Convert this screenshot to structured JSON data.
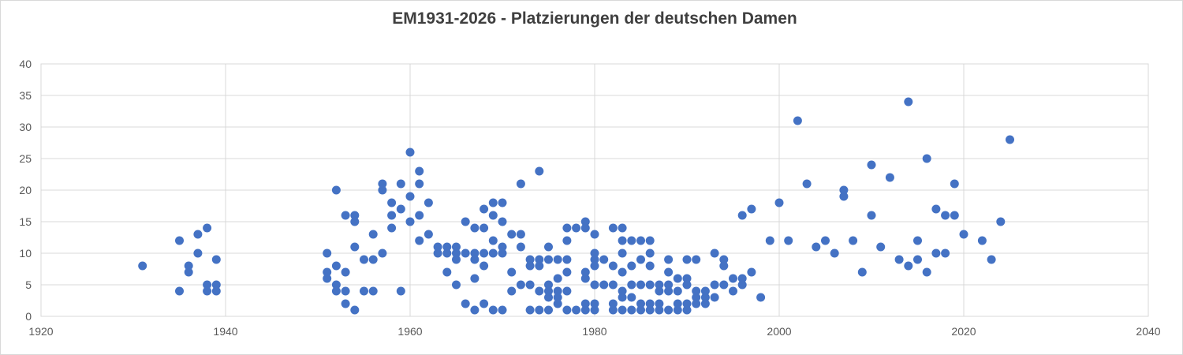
{
  "chart_data": {
    "type": "scatter",
    "title": "EM1931-2026 - Platzierungen der deutschen Damen",
    "xlabel": "",
    "ylabel": "",
    "xlim": [
      1920,
      2040
    ],
    "ylim": [
      0,
      40
    ],
    "x_ticks": [
      1920,
      1940,
      1960,
      1980,
      2000,
      2020,
      2040
    ],
    "y_ticks": [
      0,
      5,
      10,
      15,
      20,
      25,
      30,
      35,
      40
    ],
    "grid": true,
    "legend": "none",
    "marker": {
      "shape": "circle",
      "color": "#4472C4",
      "radius_px": 5.5
    },
    "points": [
      [
        1931,
        8
      ],
      [
        1935,
        12
      ],
      [
        1935,
        4
      ],
      [
        1936,
        8
      ],
      [
        1936,
        7
      ],
      [
        1937,
        13
      ],
      [
        1937,
        10
      ],
      [
        1938,
        14
      ],
      [
        1938,
        5
      ],
      [
        1938,
        4
      ],
      [
        1939,
        9
      ],
      [
        1939,
        5
      ],
      [
        1939,
        4
      ],
      [
        1951,
        10
      ],
      [
        1951,
        7
      ],
      [
        1951,
        6
      ],
      [
        1952,
        20
      ],
      [
        1952,
        8
      ],
      [
        1952,
        5
      ],
      [
        1952,
        4
      ],
      [
        1953,
        16
      ],
      [
        1953,
        7
      ],
      [
        1953,
        4
      ],
      [
        1953,
        2
      ],
      [
        1954,
        16
      ],
      [
        1954,
        15
      ],
      [
        1954,
        11
      ],
      [
        1954,
        1
      ],
      [
        1955,
        9
      ],
      [
        1955,
        4
      ],
      [
        1956,
        13
      ],
      [
        1956,
        9
      ],
      [
        1956,
        4
      ],
      [
        1957,
        21
      ],
      [
        1957,
        20
      ],
      [
        1957,
        10
      ],
      [
        1958,
        18
      ],
      [
        1958,
        16
      ],
      [
        1958,
        14
      ],
      [
        1959,
        21
      ],
      [
        1959,
        17
      ],
      [
        1959,
        4
      ],
      [
        1960,
        26
      ],
      [
        1960,
        19
      ],
      [
        1960,
        15
      ],
      [
        1961,
        23
      ],
      [
        1961,
        21
      ],
      [
        1961,
        16
      ],
      [
        1961,
        12
      ],
      [
        1962,
        18
      ],
      [
        1962,
        13
      ],
      [
        1963,
        11
      ],
      [
        1963,
        10
      ],
      [
        1964,
        11
      ],
      [
        1964,
        10
      ],
      [
        1964,
        7
      ],
      [
        1965,
        11
      ],
      [
        1965,
        10
      ],
      [
        1965,
        9
      ],
      [
        1965,
        5
      ],
      [
        1966,
        15
      ],
      [
        1966,
        10
      ],
      [
        1966,
        2
      ],
      [
        1967,
        14
      ],
      [
        1967,
        10
      ],
      [
        1967,
        9
      ],
      [
        1967,
        6
      ],
      [
        1967,
        1
      ],
      [
        1968,
        17
      ],
      [
        1968,
        14
      ],
      [
        1968,
        10
      ],
      [
        1968,
        8
      ],
      [
        1968,
        2
      ],
      [
        1969,
        18
      ],
      [
        1969,
        16
      ],
      [
        1969,
        12
      ],
      [
        1969,
        10
      ],
      [
        1969,
        1
      ],
      [
        1970,
        18
      ],
      [
        1970,
        15
      ],
      [
        1970,
        11
      ],
      [
        1970,
        10
      ],
      [
        1970,
        1
      ],
      [
        1971,
        13
      ],
      [
        1971,
        7
      ],
      [
        1971,
        4
      ],
      [
        1972,
        21
      ],
      [
        1972,
        13
      ],
      [
        1972,
        11
      ],
      [
        1972,
        5
      ],
      [
        1973,
        9
      ],
      [
        1973,
        8
      ],
      [
        1973,
        5
      ],
      [
        1973,
        1
      ],
      [
        1974,
        23
      ],
      [
        1974,
        9
      ],
      [
        1974,
        8
      ],
      [
        1974,
        4
      ],
      [
        1974,
        1
      ],
      [
        1975,
        11
      ],
      [
        1975,
        9
      ],
      [
        1975,
        5
      ],
      [
        1975,
        4
      ],
      [
        1975,
        3
      ],
      [
        1975,
        1
      ],
      [
        1976,
        9
      ],
      [
        1976,
        6
      ],
      [
        1976,
        4
      ],
      [
        1976,
        3
      ],
      [
        1976,
        2
      ],
      [
        1977,
        14
      ],
      [
        1977,
        12
      ],
      [
        1977,
        9
      ],
      [
        1977,
        7
      ],
      [
        1977,
        4
      ],
      [
        1977,
        1
      ],
      [
        1978,
        14
      ],
      [
        1978,
        1
      ],
      [
        1979,
        15
      ],
      [
        1979,
        14
      ],
      [
        1979,
        7
      ],
      [
        1979,
        6
      ],
      [
        1979,
        2
      ],
      [
        1979,
        1
      ],
      [
        1980,
        13
      ],
      [
        1980,
        10
      ],
      [
        1980,
        9
      ],
      [
        1980,
        8
      ],
      [
        1980,
        5
      ],
      [
        1980,
        2
      ],
      [
        1980,
        1
      ],
      [
        1981,
        9
      ],
      [
        1981,
        5
      ],
      [
        1982,
        14
      ],
      [
        1982,
        8
      ],
      [
        1982,
        5
      ],
      [
        1982,
        2
      ],
      [
        1982,
        1
      ],
      [
        1983,
        14
      ],
      [
        1983,
        12
      ],
      [
        1983,
        10
      ],
      [
        1983,
        7
      ],
      [
        1983,
        4
      ],
      [
        1983,
        3
      ],
      [
        1983,
        1
      ],
      [
        1984,
        12
      ],
      [
        1984,
        8
      ],
      [
        1984,
        5
      ],
      [
        1984,
        3
      ],
      [
        1984,
        1
      ],
      [
        1985,
        12
      ],
      [
        1985,
        9
      ],
      [
        1985,
        5
      ],
      [
        1985,
        2
      ],
      [
        1985,
        1
      ],
      [
        1986,
        12
      ],
      [
        1986,
        10
      ],
      [
        1986,
        8
      ],
      [
        1986,
        5
      ],
      [
        1986,
        2
      ],
      [
        1986,
        1
      ],
      [
        1987,
        5
      ],
      [
        1987,
        4
      ],
      [
        1987,
        2
      ],
      [
        1987,
        1
      ],
      [
        1988,
        9
      ],
      [
        1988,
        7
      ],
      [
        1988,
        5
      ],
      [
        1988,
        4
      ],
      [
        1988,
        1
      ],
      [
        1989,
        6
      ],
      [
        1989,
        4
      ],
      [
        1989,
        2
      ],
      [
        1989,
        1
      ],
      [
        1990,
        9
      ],
      [
        1990,
        6
      ],
      [
        1990,
        5
      ],
      [
        1990,
        2
      ],
      [
        1990,
        1
      ],
      [
        1991,
        9
      ],
      [
        1991,
        4
      ],
      [
        1991,
        3
      ],
      [
        1991,
        2
      ],
      [
        1992,
        4
      ],
      [
        1992,
        3
      ],
      [
        1992,
        2
      ],
      [
        1993,
        10
      ],
      [
        1993,
        5
      ],
      [
        1993,
        3
      ],
      [
        1994,
        9
      ],
      [
        1994,
        8
      ],
      [
        1994,
        5
      ],
      [
        1995,
        6
      ],
      [
        1995,
        4
      ],
      [
        1996,
        16
      ],
      [
        1996,
        6
      ],
      [
        1996,
        5
      ],
      [
        1997,
        17
      ],
      [
        1997,
        7
      ],
      [
        1998,
        3
      ],
      [
        1999,
        12
      ],
      [
        2000,
        18
      ],
      [
        2001,
        12
      ],
      [
        2002,
        31
      ],
      [
        2003,
        21
      ],
      [
        2004,
        11
      ],
      [
        2005,
        12
      ],
      [
        2006,
        10
      ],
      [
        2007,
        20
      ],
      [
        2007,
        19
      ],
      [
        2008,
        12
      ],
      [
        2009,
        7
      ],
      [
        2010,
        24
      ],
      [
        2010,
        16
      ],
      [
        2011,
        11
      ],
      [
        2012,
        22
      ],
      [
        2013,
        9
      ],
      [
        2014,
        34
      ],
      [
        2014,
        8
      ],
      [
        2015,
        12
      ],
      [
        2015,
        9
      ],
      [
        2016,
        25
      ],
      [
        2016,
        7
      ],
      [
        2017,
        17
      ],
      [
        2017,
        10
      ],
      [
        2018,
        16
      ],
      [
        2018,
        10
      ],
      [
        2019,
        21
      ],
      [
        2019,
        16
      ],
      [
        2020,
        13
      ],
      [
        2022,
        12
      ],
      [
        2023,
        9
      ],
      [
        2024,
        15
      ],
      [
        2025,
        28
      ]
    ]
  },
  "styles": {
    "title_color": "#3f3f3f",
    "tick_label_color": "#595959",
    "gridline_color": "#d9d9d9",
    "plot_border_color": "#d9d9d9",
    "chart_border_color": "#d9d9d9",
    "background": "#ffffff",
    "marker_color": "#4472C4"
  }
}
